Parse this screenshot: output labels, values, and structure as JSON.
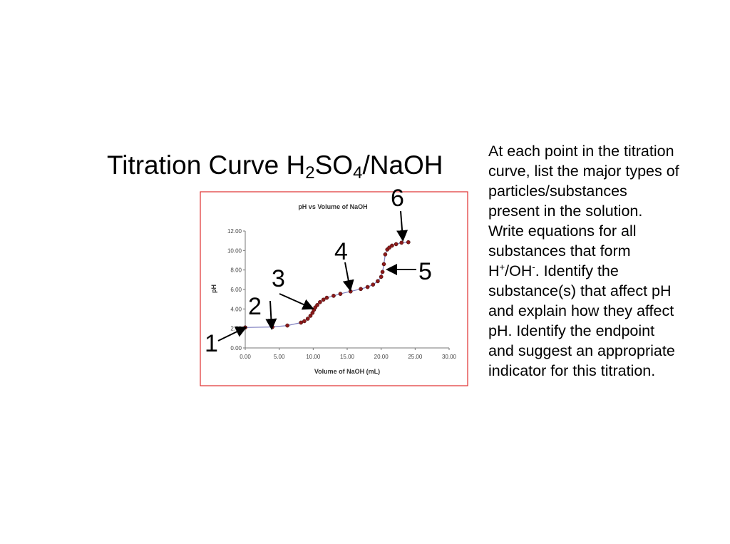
{
  "slide": {
    "title_main": "Titration Curve H",
    "title_sub1": "2",
    "title_mid": "SO",
    "title_sub2": "4",
    "title_end": "/NaOH",
    "text_part1": "At each point in the titration curve, list the major types of particles/substances present in the solution. Write equations for all substances that form H",
    "text_sup1": "+",
    "text_part2": "/OH",
    "text_sup2": "-",
    "text_part3": ".  Identify the substance(s) that affect pH and explain how they affect pH.  Identify the endpoint and suggest an appropriate indicator for this titration."
  },
  "chart_data": {
    "type": "scatter",
    "title": "pH vs Volume of NaOH",
    "xlabel": "Volume of NaOH (mL)",
    "ylabel": "pH",
    "xlim": [
      0,
      30
    ],
    "ylim": [
      0,
      12
    ],
    "x_ticks": [
      "0.00",
      "5.00",
      "10.00",
      "15.00",
      "20.00",
      "25.00",
      "30.00"
    ],
    "y_ticks": [
      "0.00",
      "2.00",
      "4.00",
      "6.00",
      "8.00",
      "10.00",
      "12.00"
    ],
    "grid": false,
    "colors": {
      "marker": "#8b1a1a",
      "line": "#8080c0",
      "frame": "#e03030"
    },
    "series": [
      {
        "x": [
          0.0,
          4.0,
          6.2,
          8.2,
          8.7,
          9.2,
          9.6,
          9.9,
          10.1,
          10.3,
          10.6,
          11.0,
          11.5,
          12.0,
          13.0,
          14.0,
          15.5,
          17.0,
          18.0,
          18.8,
          19.5,
          20.0,
          20.2,
          20.4,
          20.6,
          20.9,
          21.2,
          21.6,
          22.2,
          23.0,
          24.0
        ],
        "y": [
          2.1,
          2.15,
          2.3,
          2.6,
          2.75,
          3.0,
          3.3,
          3.6,
          3.9,
          4.15,
          4.4,
          4.7,
          4.95,
          5.15,
          5.35,
          5.55,
          5.8,
          6.05,
          6.25,
          6.5,
          6.85,
          7.3,
          7.8,
          8.6,
          9.6,
          10.1,
          10.3,
          10.5,
          10.65,
          10.8,
          10.85
        ]
      }
    ],
    "annotations": [
      "1",
      "2",
      "3",
      "4",
      "5",
      "6"
    ]
  }
}
